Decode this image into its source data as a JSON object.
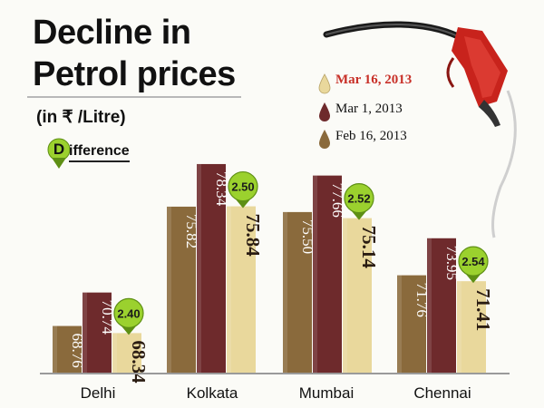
{
  "title_line1": "Decline in",
  "title_line2": "Petrol prices",
  "unit": "(in ₹ /Litre)",
  "difference_legend": {
    "letter": "D",
    "text": "ifference"
  },
  "legend": [
    {
      "label": "Mar 16, 2013",
      "color": "#e9d89c"
    },
    {
      "label": "Mar 1, 2013",
      "color": "#6e2a2c"
    },
    {
      "label": "Feb 16, 2013",
      "color": "#8a6a3c"
    }
  ],
  "colors": {
    "feb": "#8a6a3c",
    "mar1": "#6e2a2c",
    "mar16": "#e9d89c",
    "badge": "#9bd12e",
    "badge_dark": "#5e8f14",
    "nozzle": "#c8231c"
  },
  "chart_data": {
    "type": "bar",
    "title": "Decline in Petrol prices",
    "subtitle": "(in ₹ /Litre)",
    "categories": [
      "Delhi",
      "Kolkata",
      "Mumbai",
      "Chennai"
    ],
    "series": [
      {
        "name": "Feb 16, 2013",
        "values": [
          68.76,
          75.82,
          75.5,
          71.76
        ]
      },
      {
        "name": "Mar 1, 2013",
        "values": [
          70.74,
          78.34,
          77.66,
          73.95
        ]
      },
      {
        "name": "Mar 16, 2013",
        "values": [
          68.34,
          75.84,
          75.14,
          71.41
        ]
      }
    ],
    "difference": [
      2.4,
      2.5,
      2.52,
      2.54
    ],
    "value_labels": [
      [
        "68.76",
        "70.74",
        "68.34"
      ],
      [
        "75.82",
        "78.34",
        "75.84"
      ],
      [
        "75.50",
        "77.66",
        "75.14"
      ],
      [
        "71.76",
        "73.95",
        "71.41"
      ]
    ],
    "difference_labels": [
      "2.40",
      "2.50",
      "2.52",
      "2.54"
    ],
    "ylim": [
      66,
      80
    ]
  }
}
